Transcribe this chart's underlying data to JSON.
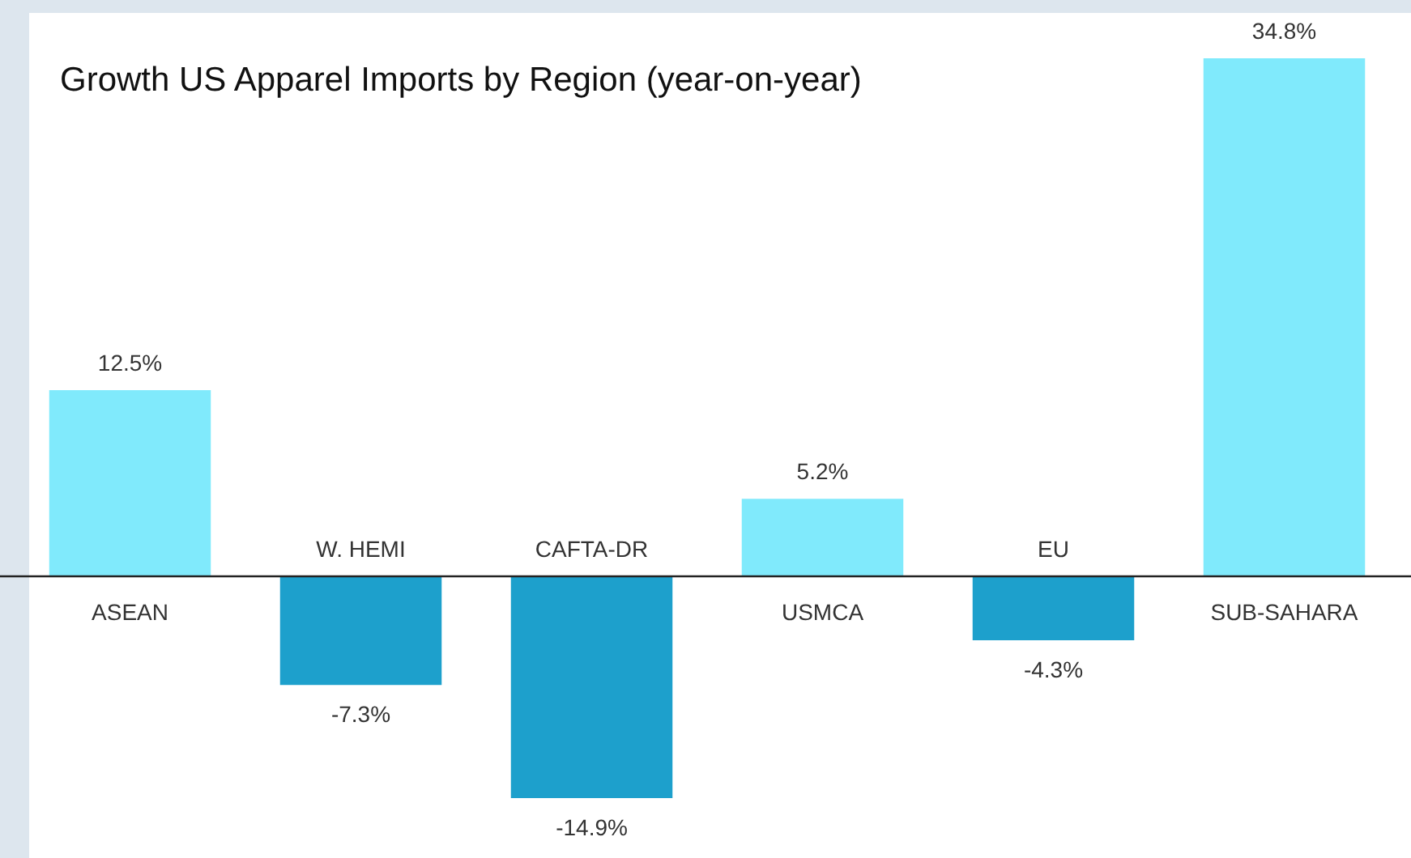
{
  "chart_data": {
    "type": "bar",
    "title": "Growth US Apparel Imports by Region (year-on-year)",
    "categories": [
      "ASEAN",
      "W. HEMI",
      "CAFTA-DR",
      "USMCA",
      "EU",
      "SUB-SAHARA"
    ],
    "values": [
      12.5,
      -7.3,
      -14.9,
      5.2,
      -4.3,
      34.8
    ],
    "colors": [
      "#80eafc",
      "#1da0cc",
      "#1da0cc",
      "#80eafc",
      "#1da0cc",
      "#80eafc"
    ],
    "value_labels": [
      "12.5%",
      "-7.3%",
      "-14.9%",
      "5.2%",
      "-4.3%",
      "34.8%"
    ]
  }
}
